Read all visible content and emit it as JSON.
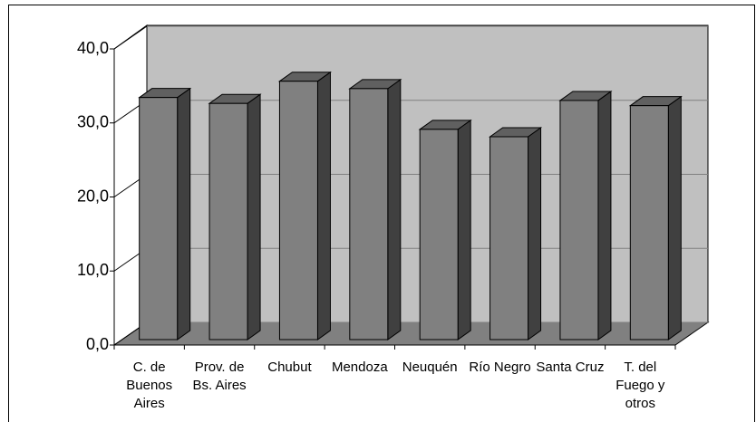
{
  "chart_data": {
    "type": "bar3d",
    "categories": [
      "C. de Buenos Aires",
      "Prov. de Bs. Aires",
      "Chubut",
      "Mendoza",
      "Neuquén",
      "Río Negro",
      "Santa Cruz",
      "T. del Fuego y otros"
    ],
    "values": [
      32.7,
      31.9,
      34.9,
      33.9,
      28.4,
      27.4,
      32.3,
      31.6
    ],
    "color": "#808080",
    "ylim": [
      0,
      40
    ],
    "yticks": [
      {
        "value": 0,
        "label": "0,0"
      },
      {
        "value": 10,
        "label": "10,0"
      },
      {
        "value": 20,
        "label": "20,0"
      },
      {
        "value": 30,
        "label": "30,0"
      },
      {
        "value": 40,
        "label": "40,0"
      }
    ],
    "grid": true
  }
}
